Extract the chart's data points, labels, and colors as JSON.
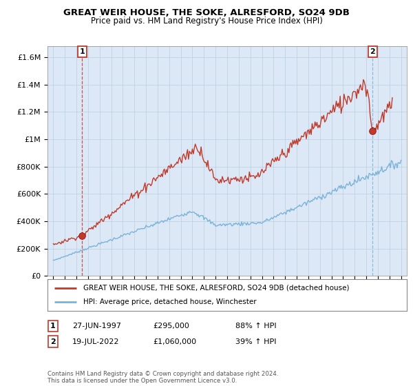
{
  "title": "GREAT WEIR HOUSE, THE SOKE, ALRESFORD, SO24 9DB",
  "subtitle": "Price paid vs. HM Land Registry's House Price Index (HPI)",
  "ylabel_ticks": [
    "£0",
    "£200K",
    "£400K",
    "£600K",
    "£800K",
    "£1M",
    "£1.2M",
    "£1.4M",
    "£1.6M"
  ],
  "ylabel_values": [
    0,
    200000,
    400000,
    600000,
    800000,
    1000000,
    1200000,
    1400000,
    1600000
  ],
  "ylim": [
    0,
    1680000
  ],
  "transaction1": {
    "date_num": 1997.49,
    "price": 295000,
    "label": "1",
    "date_str": "27-JUN-1997",
    "price_str": "£295,000",
    "pct": "88% ↑ HPI"
  },
  "transaction2": {
    "date_num": 2022.54,
    "price": 1060000,
    "label": "2",
    "date_str": "19-JUL-2022",
    "price_str": "£1,060,000",
    "pct": "39% ↑ HPI"
  },
  "xlim_start": 1994.5,
  "xlim_end": 2025.5,
  "xticks": [
    1995,
    1996,
    1997,
    1998,
    1999,
    2000,
    2001,
    2002,
    2003,
    2004,
    2005,
    2006,
    2007,
    2008,
    2009,
    2010,
    2011,
    2012,
    2013,
    2014,
    2015,
    2016,
    2017,
    2018,
    2019,
    2020,
    2021,
    2022,
    2023,
    2024,
    2025
  ],
  "hpi_color": "#7ab3d9",
  "price_color": "#c0392b",
  "dashed_color_t1": "#c0392b",
  "dashed_color_t2": "#7ab3d9",
  "background_color": "#dce8f5",
  "grid_color": "#b8cfe0",
  "legend_label_red": "GREAT WEIR HOUSE, THE SOKE, ALRESFORD, SO24 9DB (detached house)",
  "legend_label_blue": "HPI: Average price, detached house, Winchester",
  "footer": "Contains HM Land Registry data © Crown copyright and database right 2024.\nThis data is licensed under the Open Government Licence v3.0."
}
